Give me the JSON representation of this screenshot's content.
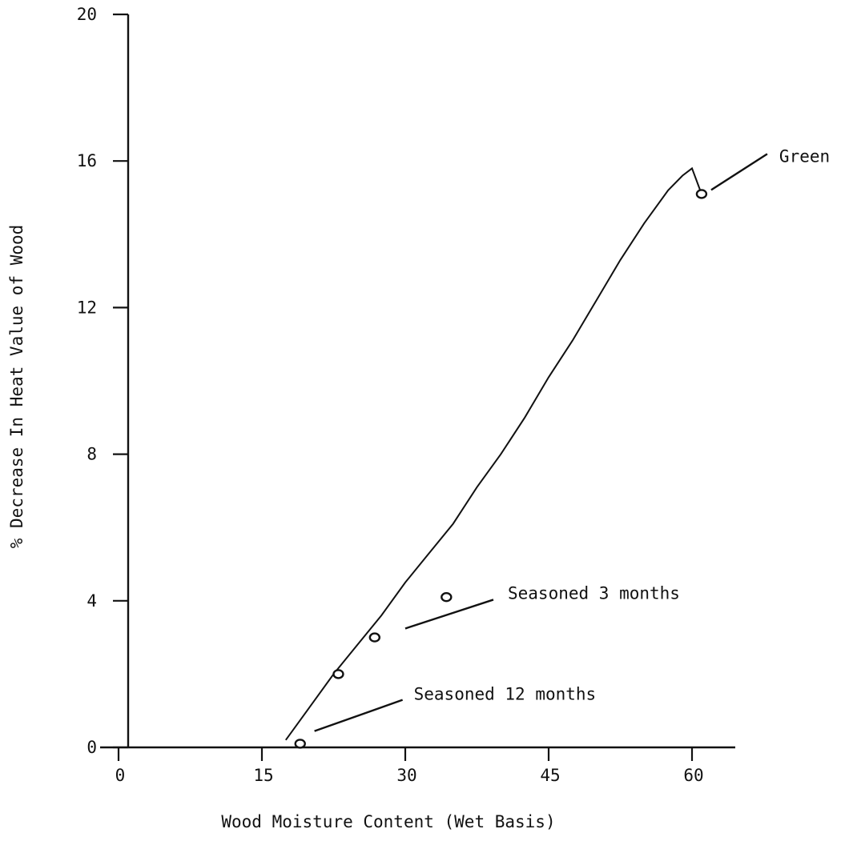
{
  "chart_data": {
    "type": "scatter",
    "title": "",
    "xlabel": "Wood Moisture Content (Wet Basis)",
    "ylabel": "% Decrease In Heat Value of Wood",
    "xlim": [
      0,
      65
    ],
    "ylim": [
      0,
      20
    ],
    "xticks": [
      0,
      15,
      30,
      45,
      60
    ],
    "yticks": [
      0,
      4,
      8,
      12,
      16,
      20
    ],
    "grid": false,
    "legend": "none",
    "points": [
      {
        "x": 19,
        "y": 0.1
      },
      {
        "x": 23,
        "y": 2.0
      },
      {
        "x": 26.8,
        "y": 3.0
      },
      {
        "x": 34.3,
        "y": 4.1
      },
      {
        "x": 61,
        "y": 15.1
      }
    ],
    "fit_curve": {
      "x": [
        17.5,
        20,
        22.5,
        25,
        27.5,
        30,
        32.5,
        35,
        37.5,
        40,
        42.5,
        45,
        47.5,
        50,
        52.5,
        55,
        57.5,
        59,
        60,
        61
      ],
      "y": [
        0.2,
        1.1,
        2.0,
        2.8,
        3.6,
        4.5,
        5.3,
        6.1,
        7.1,
        8.0,
        9.0,
        10.1,
        11.1,
        12.2,
        13.3,
        14.3,
        15.2,
        15.6,
        15.8,
        15.1
      ]
    },
    "annotations": [
      {
        "text": "Green",
        "point_x": 61,
        "point_y": 15.1
      },
      {
        "text": "Seasoned 3 months",
        "point_x": 30,
        "point_y": 3.2
      },
      {
        "text": "Seasoned 12 months",
        "point_x": 20.5,
        "point_y": 0.4
      }
    ]
  }
}
